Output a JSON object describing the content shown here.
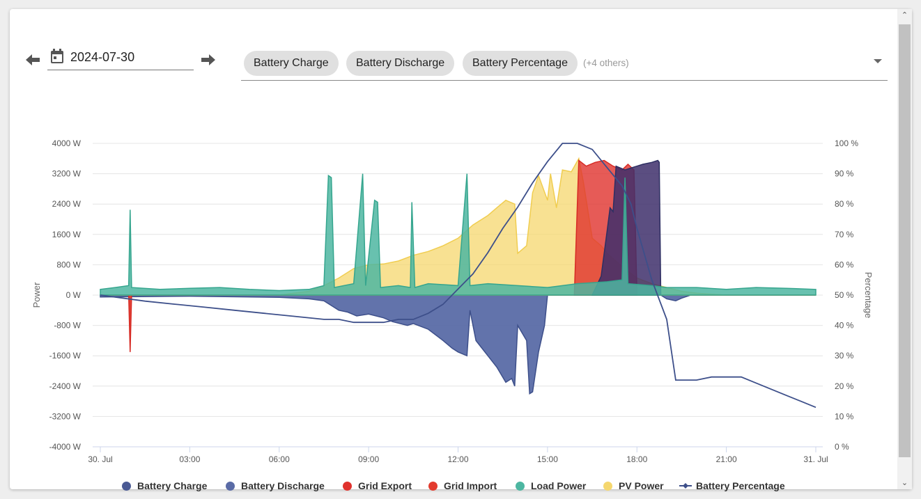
{
  "toolbar": {
    "date_value": "2024-07-30",
    "prev_icon": "arrow-left-icon",
    "next_icon": "arrow-right-icon",
    "calendar_icon": "calendar-icon",
    "selected_series": [
      "Battery Charge",
      "Battery Discharge",
      "Battery Percentage"
    ],
    "others_label": "(+4 others)",
    "dropdown_icon": "chevron-down-icon"
  },
  "chart_data": {
    "type": "area",
    "xlabel": "",
    "ylabel_left": "Power",
    "ylabel_right": "Percentage",
    "x_ticks": [
      "30. Jul",
      "03:00",
      "06:00",
      "09:00",
      "12:00",
      "15:00",
      "18:00",
      "21:00",
      "31. Jul"
    ],
    "ylim_left": [
      -4000,
      4000
    ],
    "ylim_right": [
      0,
      100
    ],
    "y_ticks_left": [
      "4000 W",
      "3200 W",
      "2400 W",
      "1600 W",
      "800 W",
      "0 W",
      "-800 W",
      "-1600 W",
      "-2400 W",
      "-3200 W",
      "-4000 W"
    ],
    "y_ticks_right": [
      "100 %",
      "90 %",
      "80 %",
      "70 %",
      "60 %",
      "50 %",
      "40 %",
      "30 %",
      "20 %",
      "10 %",
      "0 %"
    ],
    "grid": true,
    "legend_position": "bottom",
    "series": [
      {
        "name": "Battery Charge",
        "unit": "W",
        "color": "#4a5a94",
        "points": [
          [
            16.5,
            0
          ],
          [
            16.8,
            500
          ],
          [
            17.0,
            1700
          ],
          [
            17.1,
            2300
          ],
          [
            17.2,
            2200
          ],
          [
            17.3,
            3400
          ],
          [
            17.6,
            3300
          ],
          [
            17.8,
            3350
          ],
          [
            18.0,
            3400
          ],
          [
            18.2,
            3450
          ],
          [
            18.5,
            3500
          ],
          [
            18.7,
            3550
          ],
          [
            18.75,
            3500
          ],
          [
            18.8,
            0
          ]
        ]
      },
      {
        "name": "Battery Discharge",
        "unit": "W",
        "color": "#5a6ba6",
        "points": [
          [
            0,
            -50
          ],
          [
            3,
            -30
          ],
          [
            6,
            -60
          ],
          [
            7.0,
            -100
          ],
          [
            7.5,
            -150
          ],
          [
            7.8,
            -300
          ],
          [
            8.0,
            -400
          ],
          [
            8.3,
            -450
          ],
          [
            8.6,
            -550
          ],
          [
            9.0,
            -500
          ],
          [
            9.5,
            -600
          ],
          [
            9.8,
            -700
          ],
          [
            10.3,
            -800
          ],
          [
            10.5,
            -750
          ],
          [
            11.0,
            -900
          ],
          [
            11.5,
            -1200
          ],
          [
            11.8,
            -1400
          ],
          [
            12.0,
            -1500
          ],
          [
            12.3,
            -1600
          ],
          [
            12.4,
            -400
          ],
          [
            12.6,
            -1200
          ],
          [
            13.0,
            -1600
          ],
          [
            13.3,
            -1900
          ],
          [
            13.6,
            -2300
          ],
          [
            13.8,
            -2200
          ],
          [
            13.9,
            -2400
          ],
          [
            14.0,
            -800
          ],
          [
            14.3,
            -1200
          ],
          [
            14.4,
            -2600
          ],
          [
            14.5,
            -2550
          ],
          [
            14.7,
            -1500
          ],
          [
            14.9,
            -800
          ],
          [
            15.0,
            0
          ],
          [
            18.8,
            0
          ],
          [
            19.0,
            -100
          ],
          [
            19.3,
            -150
          ],
          [
            19.5,
            -80
          ],
          [
            19.8,
            0
          ],
          [
            24,
            0
          ]
        ]
      },
      {
        "name": "Grid Export",
        "unit": "W",
        "color": "#e0322d",
        "points": [
          [
            15.9,
            0
          ],
          [
            16.05,
            3550
          ],
          [
            16.3,
            3400
          ],
          [
            16.6,
            3500
          ],
          [
            16.9,
            3550
          ],
          [
            17.2,
            3400
          ],
          [
            17.5,
            3300
          ],
          [
            17.7,
            3450
          ],
          [
            17.9,
            3300
          ],
          [
            18.0,
            0
          ]
        ]
      },
      {
        "name": "Grid Import",
        "unit": "W",
        "color": "#e33b2e",
        "points": [
          [
            0,
            0
          ],
          [
            0.95,
            0
          ],
          [
            1.0,
            -1500
          ],
          [
            1.05,
            0
          ],
          [
            24,
            0
          ]
        ]
      },
      {
        "name": "Load Power",
        "unit": "W",
        "color": "#4db6a1",
        "points": [
          [
            0,
            150
          ],
          [
            0.5,
            200
          ],
          [
            0.95,
            250
          ],
          [
            1.0,
            2250
          ],
          [
            1.05,
            200
          ],
          [
            2,
            150
          ],
          [
            3,
            180
          ],
          [
            4,
            200
          ],
          [
            5,
            150
          ],
          [
            6,
            120
          ],
          [
            7.0,
            150
          ],
          [
            7.5,
            250
          ],
          [
            7.65,
            3150
          ],
          [
            7.75,
            3100
          ],
          [
            7.85,
            200
          ],
          [
            8.5,
            300
          ],
          [
            8.8,
            3200
          ],
          [
            8.9,
            250
          ],
          [
            9.2,
            2500
          ],
          [
            9.3,
            2450
          ],
          [
            9.4,
            200
          ],
          [
            10,
            250
          ],
          [
            10.4,
            200
          ],
          [
            10.45,
            2450
          ],
          [
            10.55,
            200
          ],
          [
            11,
            300
          ],
          [
            12,
            250
          ],
          [
            12.3,
            3200
          ],
          [
            12.4,
            250
          ],
          [
            13,
            300
          ],
          [
            14,
            250
          ],
          [
            15,
            200
          ],
          [
            16,
            300
          ],
          [
            17.0,
            350
          ],
          [
            17.5,
            400
          ],
          [
            17.6,
            3100
          ],
          [
            17.7,
            300
          ],
          [
            18.5,
            250
          ],
          [
            19,
            200
          ],
          [
            20,
            200
          ],
          [
            21,
            150
          ],
          [
            22,
            200
          ],
          [
            23,
            180
          ],
          [
            24,
            150
          ]
        ]
      },
      {
        "name": "PV Power",
        "unit": "W",
        "color": "#f5d76e",
        "points": [
          [
            0,
            0
          ],
          [
            6,
            0
          ],
          [
            6.5,
            50
          ],
          [
            7.0,
            100
          ],
          [
            7.5,
            250
          ],
          [
            8.0,
            450
          ],
          [
            8.5,
            700
          ],
          [
            9.0,
            800
          ],
          [
            9.5,
            820
          ],
          [
            10.0,
            900
          ],
          [
            10.5,
            1050
          ],
          [
            11.0,
            1150
          ],
          [
            11.5,
            1300
          ],
          [
            12.0,
            1500
          ],
          [
            12.5,
            1850
          ],
          [
            13.0,
            2100
          ],
          [
            13.3,
            2300
          ],
          [
            13.6,
            2500
          ],
          [
            13.9,
            2400
          ],
          [
            14.0,
            1100
          ],
          [
            14.3,
            1300
          ],
          [
            14.5,
            2700
          ],
          [
            14.7,
            3150
          ],
          [
            15.0,
            2500
          ],
          [
            15.1,
            3200
          ],
          [
            15.3,
            2300
          ],
          [
            15.5,
            3300
          ],
          [
            15.8,
            3250
          ],
          [
            16.05,
            3600
          ],
          [
            16.2,
            3000
          ],
          [
            16.5,
            1500
          ],
          [
            16.8,
            1300
          ],
          [
            17.0,
            1100
          ],
          [
            17.5,
            750
          ],
          [
            18.0,
            450
          ],
          [
            18.5,
            300
          ],
          [
            19.0,
            200
          ],
          [
            19.5,
            100
          ],
          [
            20.0,
            50
          ],
          [
            21,
            0
          ],
          [
            24,
            0
          ]
        ]
      },
      {
        "name": "Battery Percentage",
        "unit": "%",
        "color": "#3d4f8a",
        "points": [
          [
            0,
            50
          ],
          [
            1.5,
            48
          ],
          [
            2.5,
            47
          ],
          [
            3.5,
            46
          ],
          [
            4.5,
            45
          ],
          [
            5.5,
            44
          ],
          [
            6.5,
            43
          ],
          [
            7.5,
            42
          ],
          [
            8.0,
            42
          ],
          [
            8.5,
            41
          ],
          [
            9.0,
            41
          ],
          [
            9.5,
            41
          ],
          [
            10.0,
            42
          ],
          [
            10.5,
            42
          ],
          [
            11.0,
            44
          ],
          [
            11.5,
            47
          ],
          [
            12.0,
            52
          ],
          [
            12.5,
            57
          ],
          [
            13.0,
            64
          ],
          [
            13.5,
            72
          ],
          [
            14.0,
            79
          ],
          [
            14.5,
            87
          ],
          [
            15.0,
            94
          ],
          [
            15.5,
            100
          ],
          [
            16.0,
            100
          ],
          [
            16.5,
            98
          ],
          [
            17.0,
            92
          ],
          [
            17.5,
            86
          ],
          [
            17.8,
            80
          ],
          [
            18.0,
            72
          ],
          [
            18.5,
            55
          ],
          [
            19.0,
            42
          ],
          [
            19.3,
            22
          ],
          [
            20.0,
            22
          ],
          [
            20.5,
            23
          ],
          [
            21.5,
            23
          ],
          [
            22.0,
            21
          ],
          [
            22.5,
            19
          ],
          [
            23.0,
            17
          ],
          [
            23.5,
            15
          ],
          [
            24.0,
            13
          ]
        ]
      }
    ]
  }
}
